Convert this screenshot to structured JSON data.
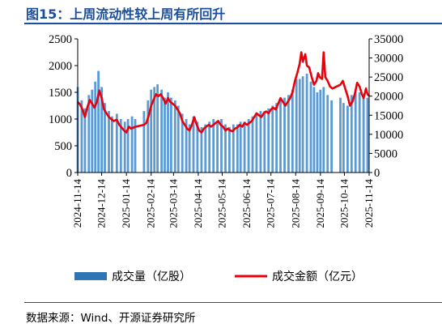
{
  "figure": {
    "title": "图15：上周流动性较上周有所回升",
    "source": "数据来源：Wind、开源证券研究所"
  },
  "chart_data": {
    "type": "bar+line",
    "x_tick_labels": [
      "2024-11-14",
      "2024-12-14",
      "2025-01-14",
      "2025-02-14",
      "2025-03-14",
      "2025-04-14",
      "2025-05-14",
      "2025-06-14",
      "2025-07-14",
      "2025-08-14",
      "2025-09-14",
      "2025-10-14",
      "2025-11-14"
    ],
    "y_left": {
      "lim": [
        0,
        2500
      ],
      "ticks": [
        0,
        500,
        1000,
        1500,
        2000,
        2500
      ],
      "tick_labels": [
        "0",
        "500",
        "1000",
        "1500",
        "2000",
        "2500"
      ]
    },
    "y_right": {
      "lim": [
        0,
        35000
      ],
      "ticks": [
        0,
        5000,
        10000,
        15000,
        20000,
        25000,
        30000,
        35000
      ],
      "tick_labels": [
        "0",
        "5000",
        "10000",
        "15000",
        "20000",
        "25000",
        "30000",
        "35000"
      ]
    },
    "grid": false,
    "legend_position": "bottom",
    "colors": {
      "bar": "#5b9bd5",
      "line": "#e8000b",
      "legend_bar": "#2e75b6"
    },
    "series": [
      {
        "name": "成交量（亿股）",
        "kind": "bar",
        "axis": "left",
        "points": [
          [
            "2024-11-14",
            1600
          ],
          [
            "2024-11-19",
            1350
          ],
          [
            "2024-11-23",
            1200
          ],
          [
            "2024-11-28",
            1450
          ],
          [
            "2024-12-02",
            1550
          ],
          [
            "2024-12-06",
            1700
          ],
          [
            "2024-12-10",
            1900
          ],
          [
            "2024-12-14",
            1600
          ],
          [
            "2024-12-18",
            1300
          ],
          [
            "2024-12-23",
            1150
          ],
          [
            "2024-12-27",
            1050
          ],
          [
            "2025-01-02",
            1100
          ],
          [
            "2025-01-07",
            1000
          ],
          [
            "2025-01-12",
            950
          ],
          [
            "2025-01-16",
            1000
          ],
          [
            "2025-01-21",
            1050
          ],
          [
            "2025-01-25",
            1000
          ],
          [
            "2025-02-05",
            1150
          ],
          [
            "2025-02-10",
            1350
          ],
          [
            "2025-02-14",
            1550
          ],
          [
            "2025-02-18",
            1600
          ],
          [
            "2025-02-22",
            1650
          ],
          [
            "2025-02-27",
            1550
          ],
          [
            "2025-03-03",
            1400
          ],
          [
            "2025-03-07",
            1500
          ],
          [
            "2025-03-11",
            1400
          ],
          [
            "2025-03-16",
            1350
          ],
          [
            "2025-03-20",
            1250
          ],
          [
            "2025-03-25",
            1100
          ],
          [
            "2025-03-30",
            1000
          ],
          [
            "2025-04-03",
            900
          ],
          [
            "2025-04-08",
            1050
          ],
          [
            "2025-04-13",
            950
          ],
          [
            "2025-04-18",
            850
          ],
          [
            "2025-04-23",
            900
          ],
          [
            "2025-04-28",
            950
          ],
          [
            "2025-05-03",
            1000
          ],
          [
            "2025-05-08",
            950
          ],
          [
            "2025-05-13",
            1000
          ],
          [
            "2025-05-18",
            900
          ],
          [
            "2025-05-23",
            850
          ],
          [
            "2025-05-28",
            900
          ],
          [
            "2025-06-02",
            900
          ],
          [
            "2025-06-06",
            950
          ],
          [
            "2025-06-11",
            950
          ],
          [
            "2025-06-16",
            1000
          ],
          [
            "2025-06-21",
            1050
          ],
          [
            "2025-06-26",
            1100
          ],
          [
            "2025-07-01",
            1150
          ],
          [
            "2025-07-06",
            1150
          ],
          [
            "2025-07-11",
            1200
          ],
          [
            "2025-07-16",
            1250
          ],
          [
            "2025-07-21",
            1300
          ],
          [
            "2025-07-26",
            1350
          ],
          [
            "2025-07-31",
            1400
          ],
          [
            "2025-08-05",
            1450
          ],
          [
            "2025-08-10",
            1550
          ],
          [
            "2025-08-15",
            1750
          ],
          [
            "2025-08-19",
            1750
          ],
          [
            "2025-08-23",
            1800
          ],
          [
            "2025-08-28",
            1850
          ],
          [
            "2025-09-02",
            1700
          ],
          [
            "2025-09-06",
            1600
          ],
          [
            "2025-09-10",
            1500
          ],
          [
            "2025-09-14",
            1550
          ],
          [
            "2025-09-18",
            1600
          ],
          [
            "2025-09-23",
            1450
          ],
          [
            "2025-09-28",
            1350
          ],
          [
            "2025-10-09",
            1400
          ],
          [
            "2025-10-13",
            1300
          ],
          [
            "2025-10-18",
            1250
          ],
          [
            "2025-10-23",
            1450
          ],
          [
            "2025-10-28",
            1550
          ],
          [
            "2025-11-02",
            1500
          ],
          [
            "2025-11-07",
            1450
          ],
          [
            "2025-11-12",
            1400
          ]
        ]
      },
      {
        "name": "成交金额（亿元）",
        "kind": "line",
        "axis": "right",
        "points": [
          [
            "2024-11-14",
            18500
          ],
          [
            "2024-11-17",
            17800
          ],
          [
            "2024-11-20",
            16500
          ],
          [
            "2024-11-23",
            14500
          ],
          [
            "2024-11-26",
            17000
          ],
          [
            "2024-11-29",
            19000
          ],
          [
            "2024-12-02",
            18000
          ],
          [
            "2024-12-05",
            17000
          ],
          [
            "2024-12-08",
            18500
          ],
          [
            "2024-12-11",
            21500
          ],
          [
            "2024-12-14",
            19500
          ],
          [
            "2024-12-17",
            16500
          ],
          [
            "2024-12-20",
            15500
          ],
          [
            "2024-12-23",
            14500
          ],
          [
            "2024-12-26",
            14000
          ],
          [
            "2024-12-29",
            13500
          ],
          [
            "2025-01-02",
            13800
          ],
          [
            "2025-01-05",
            12500
          ],
          [
            "2025-01-08",
            11800
          ],
          [
            "2025-01-11",
            11000
          ],
          [
            "2025-01-14",
            10500
          ],
          [
            "2025-01-17",
            12000
          ],
          [
            "2025-01-20",
            11500
          ],
          [
            "2025-01-23",
            11800
          ],
          [
            "2025-01-26",
            12000
          ],
          [
            "2025-02-05",
            12500
          ],
          [
            "2025-02-08",
            13000
          ],
          [
            "2025-02-11",
            15000
          ],
          [
            "2025-02-14",
            17500
          ],
          [
            "2025-02-17",
            19000
          ],
          [
            "2025-02-20",
            20500
          ],
          [
            "2025-02-23",
            20000
          ],
          [
            "2025-02-26",
            20500
          ],
          [
            "2025-03-01",
            19500
          ],
          [
            "2025-03-04",
            18000
          ],
          [
            "2025-03-07",
            19500
          ],
          [
            "2025-03-10",
            18500
          ],
          [
            "2025-03-13",
            18000
          ],
          [
            "2025-03-16",
            17500
          ],
          [
            "2025-03-19",
            16500
          ],
          [
            "2025-03-22",
            15500
          ],
          [
            "2025-03-25",
            13500
          ],
          [
            "2025-03-28",
            12500
          ],
          [
            "2025-03-31",
            11500
          ],
          [
            "2025-04-03",
            11000
          ],
          [
            "2025-04-06",
            12500
          ],
          [
            "2025-04-09",
            14500
          ],
          [
            "2025-04-12",
            12500
          ],
          [
            "2025-04-15",
            11000
          ],
          [
            "2025-04-18",
            10500
          ],
          [
            "2025-04-21",
            11500
          ],
          [
            "2025-04-24",
            12000
          ],
          [
            "2025-04-27",
            12500
          ],
          [
            "2025-04-30",
            12000
          ],
          [
            "2025-05-03",
            12500
          ],
          [
            "2025-05-06",
            13000
          ],
          [
            "2025-05-09",
            13500
          ],
          [
            "2025-05-12",
            12500
          ],
          [
            "2025-05-15",
            12000
          ],
          [
            "2025-05-18",
            11000
          ],
          [
            "2025-05-21",
            11500
          ],
          [
            "2025-05-24",
            11000
          ],
          [
            "2025-05-27",
            10800
          ],
          [
            "2025-05-30",
            11500
          ],
          [
            "2025-06-02",
            11800
          ],
          [
            "2025-06-05",
            12500
          ],
          [
            "2025-06-08",
            12000
          ],
          [
            "2025-06-11",
            13000
          ],
          [
            "2025-06-14",
            12500
          ],
          [
            "2025-06-17",
            13000
          ],
          [
            "2025-06-20",
            13500
          ],
          [
            "2025-06-23",
            14500
          ],
          [
            "2025-06-26",
            15500
          ],
          [
            "2025-06-29",
            15000
          ],
          [
            "2025-07-02",
            14500
          ],
          [
            "2025-07-05",
            15500
          ],
          [
            "2025-07-08",
            16000
          ],
          [
            "2025-07-11",
            15500
          ],
          [
            "2025-07-14",
            16500
          ],
          [
            "2025-07-17",
            17000
          ],
          [
            "2025-07-20",
            16500
          ],
          [
            "2025-07-23",
            18000
          ],
          [
            "2025-07-26",
            19500
          ],
          [
            "2025-07-29",
            18500
          ],
          [
            "2025-08-01",
            17500
          ],
          [
            "2025-08-04",
            18500
          ],
          [
            "2025-08-07",
            19500
          ],
          [
            "2025-08-10",
            21000
          ],
          [
            "2025-08-13",
            24000
          ],
          [
            "2025-08-16",
            26000
          ],
          [
            "2025-08-19",
            28500
          ],
          [
            "2025-08-21",
            31500
          ],
          [
            "2025-08-23",
            29000
          ],
          [
            "2025-08-26",
            31000
          ],
          [
            "2025-08-28",
            28000
          ],
          [
            "2025-08-31",
            27500
          ],
          [
            "2025-09-03",
            25000
          ],
          [
            "2025-09-06",
            23000
          ],
          [
            "2025-09-09",
            24000
          ],
          [
            "2025-09-11",
            26000
          ],
          [
            "2025-09-13",
            25000
          ],
          [
            "2025-09-16",
            24500
          ],
          [
            "2025-09-18",
            31500
          ],
          [
            "2025-09-20",
            25000
          ],
          [
            "2025-09-23",
            24000
          ],
          [
            "2025-09-26",
            22500
          ],
          [
            "2025-09-29",
            22000
          ],
          [
            "2025-10-09",
            23000
          ],
          [
            "2025-10-12",
            24000
          ],
          [
            "2025-10-15",
            22000
          ],
          [
            "2025-10-18",
            20000
          ],
          [
            "2025-10-21",
            17500
          ],
          [
            "2025-10-24",
            18500
          ],
          [
            "2025-10-27",
            20500
          ],
          [
            "2025-10-30",
            23500
          ],
          [
            "2025-11-02",
            22500
          ],
          [
            "2025-11-05",
            20500
          ],
          [
            "2025-11-07",
            19500
          ],
          [
            "2025-11-10",
            22000
          ],
          [
            "2025-11-12",
            20500
          ],
          [
            "2025-11-14",
            20000
          ]
        ]
      }
    ]
  }
}
